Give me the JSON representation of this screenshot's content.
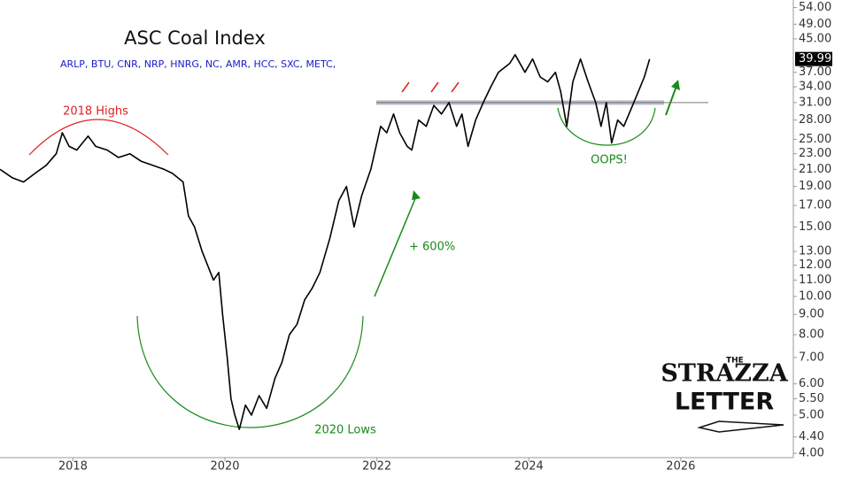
{
  "chart_data": {
    "type": "line",
    "title": "ASC Coal Index",
    "subtitle": "ARLP, BTU, CNR, NRP,  HNRG, NC, AMR, HCC, SXC, METC,",
    "log_scale": true,
    "grid": false,
    "xlim": [
      2017.04,
      2027.47
    ],
    "xticks": [
      2018,
      2020,
      2022,
      2024,
      2026
    ],
    "ylim": [
      3.9,
      55.0
    ],
    "yticks": [
      {
        "value": 54,
        "label": "54.00"
      },
      {
        "value": 49,
        "label": "49.00"
      },
      {
        "value": 45,
        "label": "45.00"
      },
      {
        "value": 37,
        "label": "37.00"
      },
      {
        "value": 34,
        "label": "34.00"
      },
      {
        "value": 31,
        "label": "31.00"
      },
      {
        "value": 28,
        "label": "28.00"
      },
      {
        "value": 25,
        "label": "25.00"
      },
      {
        "value": 23,
        "label": "23.00"
      },
      {
        "value": 21,
        "label": "21.00"
      },
      {
        "value": 19,
        "label": "19.00"
      },
      {
        "value": 17,
        "label": "17.00"
      },
      {
        "value": 15,
        "label": "15.00"
      },
      {
        "value": 13,
        "label": "13.00"
      },
      {
        "value": 12,
        "label": "12.00"
      },
      {
        "value": 11,
        "label": "11.00"
      },
      {
        "value": 10,
        "label": "10.00"
      },
      {
        "value": 9,
        "label": "9.00"
      },
      {
        "value": 8,
        "label": "8.00"
      },
      {
        "value": 7,
        "label": "7.00"
      },
      {
        "value": 6,
        "label": "6.00"
      },
      {
        "value": 5.5,
        "label": "5.50"
      },
      {
        "value": 5,
        "label": "5.00"
      },
      {
        "value": 4.4,
        "label": "4.40"
      },
      {
        "value": 4,
        "label": "4.00"
      }
    ],
    "hlines": [
      31
    ],
    "last_value_label": "39.99",
    "series": [
      {
        "name": "ASC Coal Index",
        "color": "#000000",
        "x": [
          2017.04,
          2017.2,
          2017.35,
          2017.5,
          2017.65,
          2017.78,
          2017.86,
          2017.95,
          2018.05,
          2018.2,
          2018.3,
          2018.45,
          2018.6,
          2018.75,
          2018.9,
          2019.05,
          2019.2,
          2019.31,
          2019.45,
          2019.52,
          2019.6,
          2019.7,
          2019.85,
          2019.92,
          2019.97,
          2020.03,
          2020.08,
          2020.13,
          2020.19,
          2020.27,
          2020.35,
          2020.45,
          2020.55,
          2020.66,
          2020.75,
          2020.85,
          2020.95,
          2021.05,
          2021.15,
          2021.25,
          2021.38,
          2021.5,
          2021.6,
          2021.7,
          2021.8,
          2021.92,
          2022.05,
          2022.13,
          2022.22,
          2022.3,
          2022.4,
          2022.46,
          2022.55,
          2022.65,
          2022.75,
          2022.85,
          2022.95,
          2023.05,
          2023.12,
          2023.2,
          2023.3,
          2023.4,
          2023.5,
          2023.6,
          2023.75,
          2023.82,
          2023.95,
          2024.05,
          2024.15,
          2024.25,
          2024.35,
          2024.42,
          2024.5,
          2024.58,
          2024.68,
          2024.78,
          2024.88,
          2024.95,
          2025.02,
          2025.09,
          2025.17,
          2025.25,
          2025.35,
          2025.44,
          2025.52,
          2025.59
        ],
        "values": [
          21,
          20,
          19.5,
          20.5,
          21.5,
          23,
          26,
          24,
          23.5,
          25.5,
          24,
          23.5,
          22.5,
          23,
          22,
          21.5,
          21,
          20.5,
          19.5,
          16,
          15,
          13,
          11,
          11.5,
          9,
          7,
          5.5,
          5.0,
          4.6,
          5.3,
          5.0,
          5.6,
          5.2,
          6.2,
          6.8,
          8.0,
          8.5,
          9.8,
          10.5,
          11.5,
          14,
          17.5,
          19,
          15,
          18,
          21,
          27,
          26,
          29,
          26,
          24,
          23.5,
          28,
          27,
          30.5,
          29,
          31,
          27,
          29,
          24,
          28,
          31,
          34,
          37,
          39,
          41,
          37,
          40,
          36,
          35,
          37,
          33,
          27,
          35,
          40,
          35,
          31,
          27,
          31,
          24.5,
          28,
          27,
          30,
          33,
          36,
          39.99
        ]
      }
    ],
    "annotations": {
      "highs": "2018 Highs",
      "gain": "+ 600%",
      "lows": "2020 Lows",
      "oops": "OOPS!"
    },
    "logo": {
      "top": "THE",
      "middle": "STRAZZA",
      "bottom": "LETTER"
    }
  }
}
